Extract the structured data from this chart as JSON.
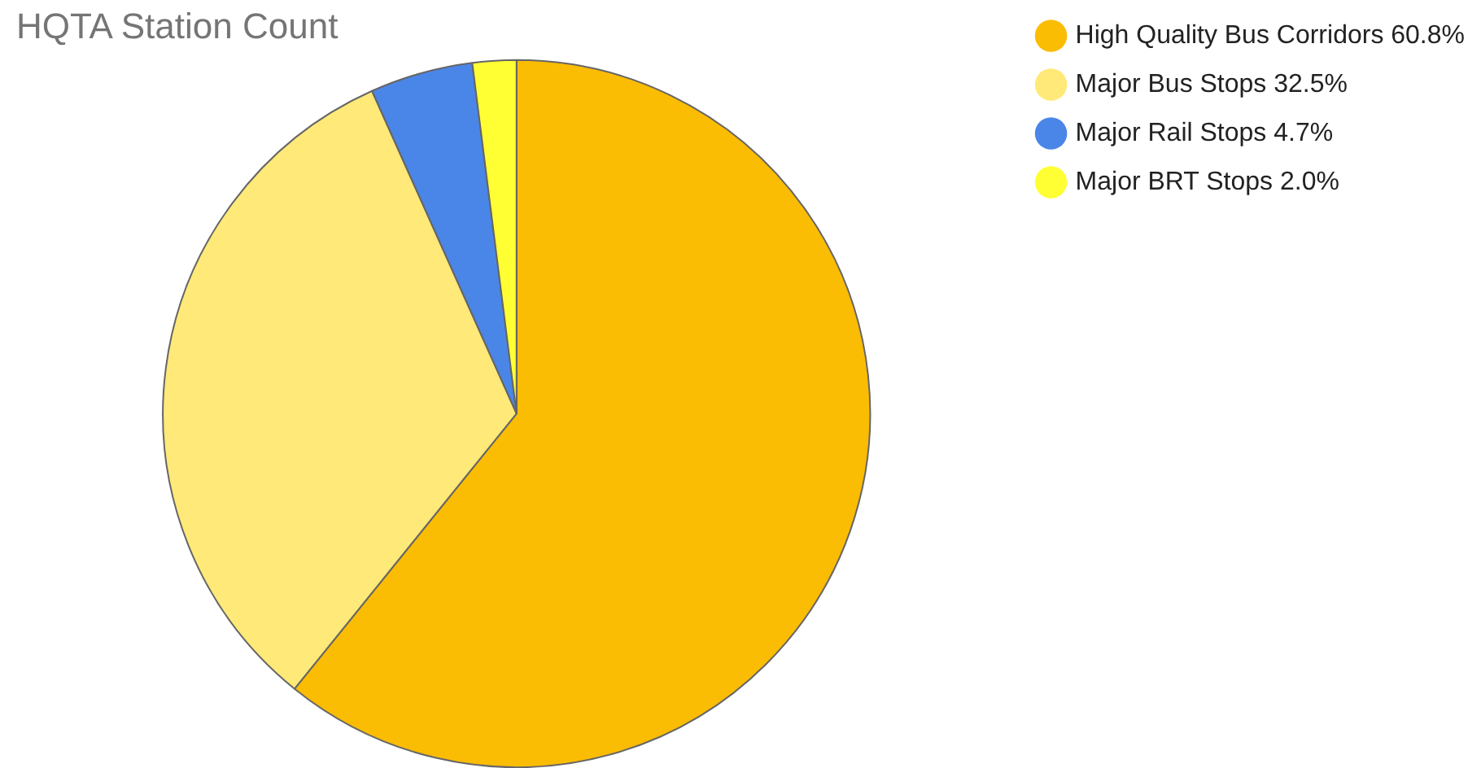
{
  "chart_data": {
    "type": "pie",
    "title": "HQTA Station Count",
    "categories": [
      "High Quality Bus Corridors",
      "Major Bus Stops",
      "Major Rail Stops",
      "Major BRT Stops"
    ],
    "values": [
      60.8,
      32.5,
      4.7,
      2.0
    ],
    "value_labels": [
      "60.8%",
      "32.5%",
      "4.7%",
      "2.0%"
    ],
    "colors": [
      "#fbbc04",
      "#ffe978",
      "#4a86e8",
      "#ffff33"
    ],
    "legend": "top right"
  }
}
